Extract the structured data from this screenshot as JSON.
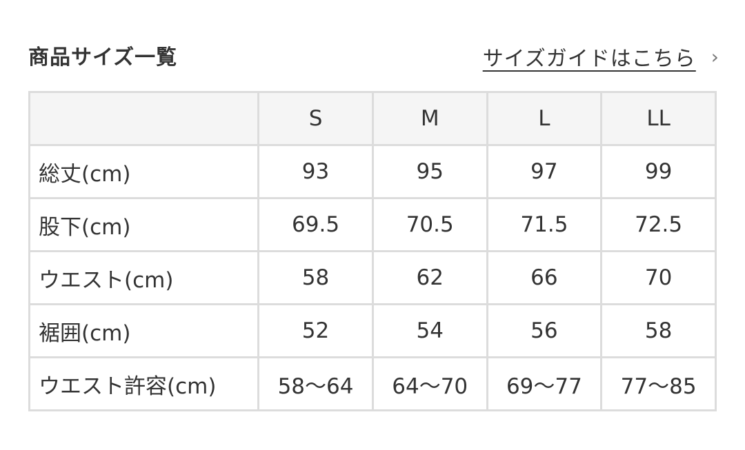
{
  "title": "商品サイズ一覧",
  "guide_link": "サイズガイドはこちら",
  "colors": {
    "text": "#333333",
    "header_bg": "#f5f5f5",
    "border": "#dcdcdc"
  },
  "table": {
    "headers": [
      "",
      "S",
      "M",
      "L",
      "LL"
    ],
    "rows": [
      {
        "label": "総丈(cm)",
        "values": [
          "93",
          "95",
          "97",
          "99"
        ]
      },
      {
        "label": "股下(cm)",
        "values": [
          "69.5",
          "70.5",
          "71.5",
          "72.5"
        ]
      },
      {
        "label": "ウエスト(cm)",
        "values": [
          "58",
          "62",
          "66",
          "70"
        ]
      },
      {
        "label": "裾囲(cm)",
        "values": [
          "52",
          "54",
          "56",
          "58"
        ]
      },
      {
        "label": "ウエスト許容(cm)",
        "values": [
          "58〜64",
          "64〜70",
          "69〜77",
          "77〜85"
        ]
      }
    ]
  }
}
